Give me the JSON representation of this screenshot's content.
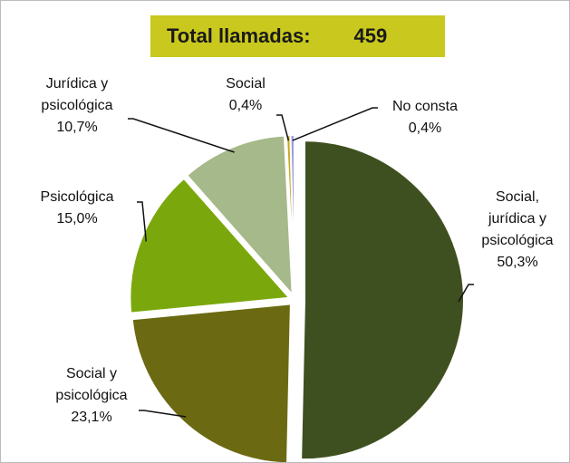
{
  "chart_data": {
    "type": "pie",
    "title": "Total llamadas:",
    "total": 459,
    "categories": [
      "Social, jurídica y psicológica",
      "Social y psicológica",
      "Psicológica",
      "Jurídica y psicológica",
      "Social",
      "No consta"
    ],
    "values": [
      50.3,
      23.1,
      15.0,
      10.7,
      0.4,
      0.4
    ],
    "value_labels": [
      "50,3%",
      "23,1%",
      "15,0%",
      "10,7%",
      "0,4%",
      "0,4%"
    ],
    "colors": [
      "#3f5020",
      "#6b6a12",
      "#7aa80c",
      "#a6b98a",
      "#c9a61c",
      "#9a9ae0"
    ]
  }
}
